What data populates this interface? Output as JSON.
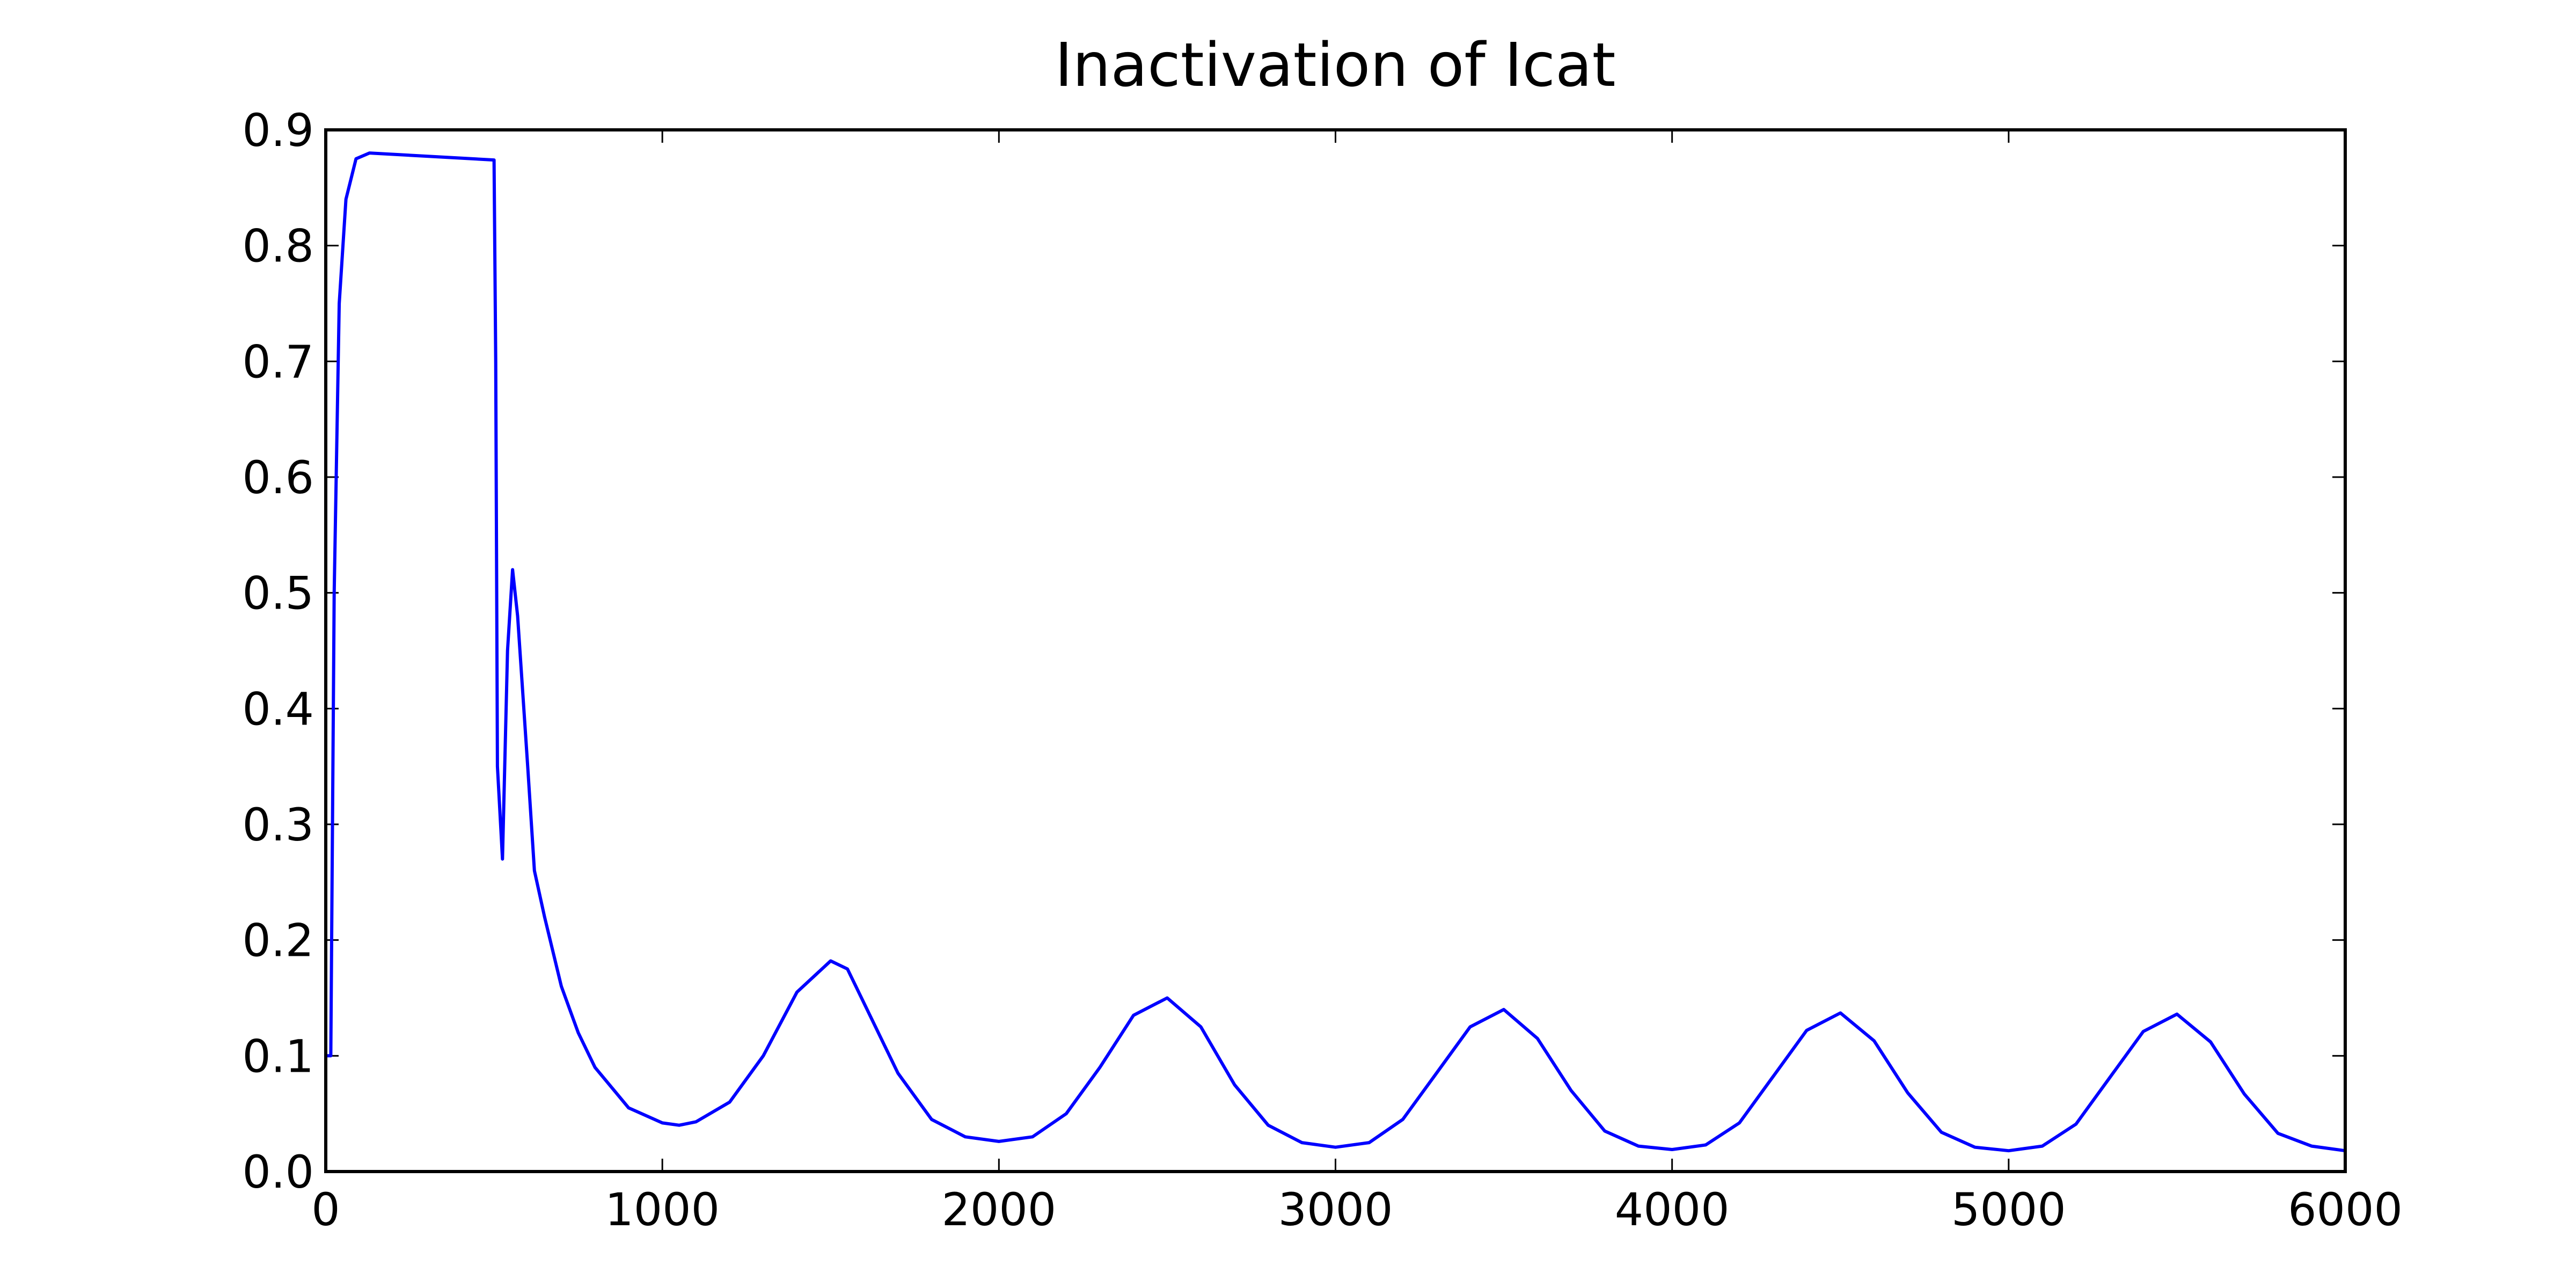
{
  "chart_data": {
    "type": "line",
    "title": "Inactivation of Icat",
    "color": "#0000ff",
    "x": [
      0,
      15,
      25,
      40,
      60,
      90,
      130,
      500,
      505,
      510,
      525,
      540,
      555,
      570,
      600,
      620,
      650,
      700,
      750,
      800,
      900,
      1000,
      1050,
      1100,
      1200,
      1300,
      1400,
      1500,
      1550,
      1600,
      1700,
      1800,
      1900,
      2000,
      2100,
      2200,
      2300,
      2400,
      2500,
      2600,
      2700,
      2800,
      2900,
      3000,
      3100,
      3200,
      3300,
      3400,
      3500,
      3600,
      3700,
      3800,
      3900,
      4000,
      4100,
      4200,
      4300,
      4400,
      4500,
      4600,
      4700,
      4800,
      4900,
      5000,
      5100,
      5200,
      5300,
      5400,
      5500,
      5600,
      5700,
      5800,
      5900,
      6000
    ],
    "values": [
      0.1,
      0.1,
      0.5,
      0.75,
      0.84,
      0.875,
      0.88,
      0.874,
      0.7,
      0.35,
      0.27,
      0.45,
      0.52,
      0.48,
      0.35,
      0.26,
      0.22,
      0.16,
      0.12,
      0.09,
      0.055,
      0.042,
      0.04,
      0.043,
      0.06,
      0.1,
      0.155,
      0.182,
      0.175,
      0.145,
      0.085,
      0.045,
      0.03,
      0.026,
      0.03,
      0.05,
      0.09,
      0.135,
      0.15,
      0.125,
      0.075,
      0.04,
      0.025,
      0.021,
      0.025,
      0.045,
      0.085,
      0.125,
      0.14,
      0.115,
      0.07,
      0.035,
      0.022,
      0.019,
      0.023,
      0.042,
      0.082,
      0.122,
      0.137,
      0.113,
      0.068,
      0.034,
      0.021,
      0.018,
      0.022,
      0.041,
      0.081,
      0.121,
      0.136,
      0.112,
      0.067,
      0.033,
      0.022,
      0.018
    ],
    "xlim": [
      0,
      6000
    ],
    "xticks": [
      0,
      1000,
      2000,
      3000,
      4000,
      5000,
      6000
    ],
    "ylim": [
      0,
      0.9
    ],
    "yticks": [
      {
        "value": 0,
        "label": "0.0"
      },
      0.1,
      0.2,
      0.3,
      0.4,
      0.5,
      0.6,
      0.7,
      0.8,
      0.9
    ],
    "grid": false
  }
}
